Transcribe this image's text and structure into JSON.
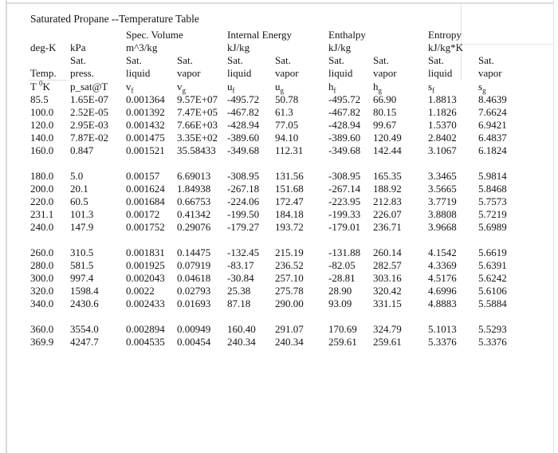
{
  "page": {
    "title": "Saturated Propane --Temperature Table"
  },
  "colors": {
    "background": "#ffffff",
    "text": "#141414",
    "frame_line": "#d9d9d9"
  },
  "table": {
    "header": {
      "spec_volume": "Spec. Volume",
      "internal_energy": "Internal Energy",
      "enthalpy": "Enthalpy",
      "entropy": "Entropy",
      "deg_k": "deg-K",
      "kpa": "kPa",
      "m3_per_kg": "m^3/kg",
      "kj_per_kg": "kJ/kg",
      "kj_per_kg_k": "kJ/kg*K",
      "temp": "Temp.",
      "sat": "Sat.",
      "press": "press.",
      "liquid": "liquid",
      "vapor": "vapor"
    },
    "symbols": [
      {
        "pre": "T ",
        "sup": "0",
        "post": "K"
      },
      {
        "pre": "p_sat@T"
      },
      {
        "pre": "v",
        "sub": "f"
      },
      {
        "pre": "v",
        "sub": "g"
      },
      {
        "pre": "u",
        "sub": "f"
      },
      {
        "pre": "u",
        "sub": "g"
      },
      {
        "pre": "h",
        "sub": "f"
      },
      {
        "pre": "h",
        "sub": "g"
      },
      {
        "pre": "s",
        "sub": "f"
      },
      {
        "pre": "s",
        "sub": "g"
      }
    ],
    "groups": [
      {
        "rows": [
          [
            "85.5",
            "1.65E-07",
            "0.001364",
            "9.57E+07",
            "-495.72",
            "50.78",
            "-495.72",
            "66.90",
            "1.8813",
            "8.4639"
          ],
          [
            "100.0",
            "2.52E-05",
            "0.001392",
            "7.47E+05",
            "-467.82",
            "61.3",
            "-467.82",
            "80.15",
            "1.1826",
            "7.6624"
          ],
          [
            "120.0",
            "2.95E-03",
            "0.001432",
            "7.66E+03",
            "-428.94",
            "77.05",
            "-428.94",
            "99.67",
            "1.5370",
            "6.9421"
          ],
          [
            "140.0",
            "7.87E-02",
            "0.001475",
            "3.35E+02",
            "-389.60",
            "94.10",
            "-389.60",
            "120.49",
            "2.8402",
            "6.4837"
          ],
          [
            "160.0",
            "0.847",
            "0.001521",
            "35.58433",
            "-349.68",
            "112.31",
            "-349.68",
            "142.44",
            "3.1067",
            "6.1824"
          ]
        ]
      },
      {
        "rows": [
          [
            "180.0",
            "5.0",
            "0.00157",
            "6.69013",
            "-308.95",
            "131.56",
            "-308.95",
            "165.35",
            "3.3465",
            "5.9814"
          ],
          [
            "200.0",
            "20.1",
            "0.001624",
            "1.84938",
            "-267.18",
            "151.68",
            "-267.14",
            "188.92",
            "3.5665",
            "5.8468"
          ],
          [
            "220.0",
            "60.5",
            "0.001684",
            "0.66753",
            "-224.06",
            "172.47",
            "-223.95",
            "212.83",
            "3.7719",
            "5.7573"
          ],
          [
            "231.1",
            "101.3",
            "0.00172",
            "0.41342",
            "-199.50",
            "184.18",
            "-199.33",
            "226.07",
            "3.8808",
            "5.7219"
          ],
          [
            "240.0",
            "147.9",
            "0.001752",
            "0.29076",
            "-179.27",
            "193.72",
            "-179.01",
            "236.71",
            "3.9668",
            "5.6989"
          ]
        ]
      },
      {
        "rows": [
          [
            "260.0",
            "310.5",
            "0.001831",
            "0.14475",
            "-132.45",
            "215.19",
            "-131.88",
            "260.14",
            "4.1542",
            "5.6619"
          ],
          [
            "280.0",
            "581.5",
            "0.001925",
            "0.07919",
            "-83.17",
            "236.52",
            "-82.05",
            "282.57",
            "4.3369",
            "5.6391"
          ],
          [
            "300.0",
            "997.4",
            "0.002043",
            "0.04618",
            "-30.84",
            "257.10",
            "-28.81",
            "303.16",
            "4.5176",
            "5.6242"
          ],
          [
            "320.0",
            "1598.4",
            "0.0022",
            "0.02793",
            "25.38",
            "275.78",
            "28.90",
            "320.42",
            "4.6996",
            "5.6106"
          ],
          [
            "340.0",
            "2430.6",
            "0.002433",
            "0.01693",
            "87.18",
            "290.00",
            "93.09",
            "331.15",
            "4.8883",
            "5.5884"
          ]
        ]
      },
      {
        "rows": [
          [
            "360.0",
            "3554.0",
            "0.002894",
            "0.00949",
            "160.40",
            "291.07",
            "170.69",
            "324.79",
            "5.1013",
            "5.5293"
          ],
          [
            "369.9",
            "4247.7",
            "0.004535",
            "0.00454",
            "240.34",
            "240.34",
            "259.61",
            "259.61",
            "5.3376",
            "5.3376"
          ]
        ]
      }
    ]
  }
}
